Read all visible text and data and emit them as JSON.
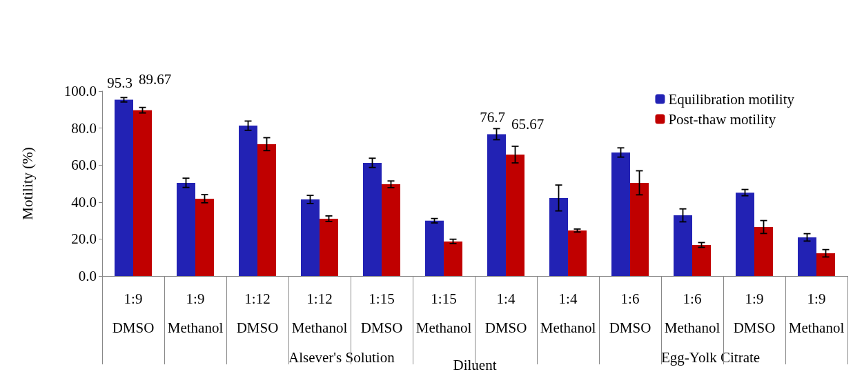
{
  "chart_data": {
    "type": "bar",
    "xlabel": "Diluent",
    "ylabel": "Motility (%)",
    "categories": [
      "1:9\nDMSO",
      "1:9\nMethanol",
      "1:12\nDMSO",
      "1:12\nMethanol",
      "1:15\nDMSO",
      "1:15\nMethanol",
      "1:4\nDMSO",
      "1:4\nMethanol",
      "1:6\nDMSO",
      "1:6\nMethanol",
      "1:9\nDMSO",
      "1:9\nMethanol"
    ],
    "annotations": [
      "Alsever's Solution",
      "Egg-Yolk Citrate"
    ],
    "series": [
      {
        "name": "Equilibration motility",
        "color": "#2222b4",
        "values": [
          95.3,
          50.4,
          81.3,
          41.4,
          61.2,
          29.9,
          76.7,
          42.2,
          66.8,
          32.8,
          45.1,
          20.9
        ],
        "errors": [
          1.2,
          2.5,
          2.5,
          2.2,
          2.5,
          1.2,
          3,
          7,
          2.5,
          3.5,
          1.7,
          2
        ],
        "value_labels": [
          "95.3",
          null,
          null,
          null,
          null,
          null,
          "76.7",
          null,
          null,
          null,
          null,
          null
        ]
      },
      {
        "name": "Post-thaw motility",
        "color": "#c00000",
        "values": [
          89.67,
          41.8,
          71.3,
          31.0,
          49.6,
          18.7,
          65.67,
          24.6,
          50.4,
          16.8,
          26.5,
          12.3
        ],
        "errors": [
          1.5,
          2.2,
          3.5,
          1.5,
          1.8,
          1.2,
          4.5,
          0.8,
          6.5,
          1.3,
          3.5,
          2
        ],
        "value_labels": [
          "89.67",
          null,
          null,
          null,
          null,
          null,
          "65.67",
          null,
          null,
          null,
          null,
          null
        ]
      }
    ],
    "ylim": [
      0,
      100
    ],
    "yticks": [
      {
        "value": 0,
        "label": "0.0"
      },
      {
        "value": 20,
        "label": "20.0"
      },
      {
        "value": 40,
        "label": "40.0"
      },
      {
        "value": 60,
        "label": "60.0"
      },
      {
        "value": 80,
        "label": "80.0"
      },
      {
        "value": 100,
        "label": "100.0"
      }
    ],
    "grid": false,
    "legend": "top right"
  }
}
